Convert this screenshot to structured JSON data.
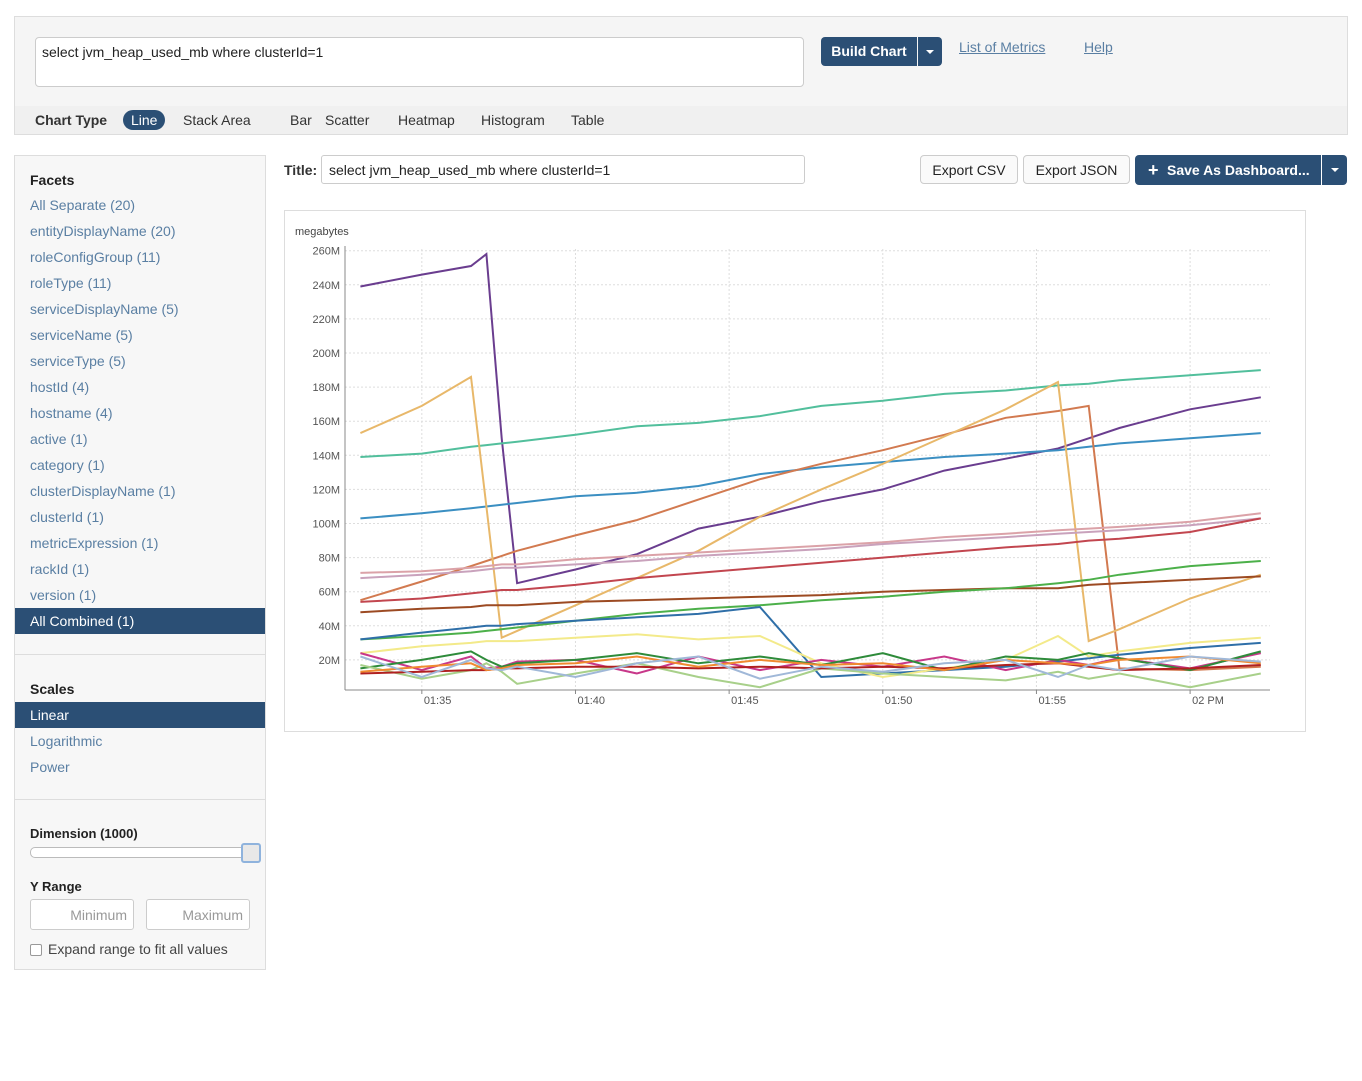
{
  "header": {
    "query": "select jvm_heap_used_mb where clusterId=1",
    "build_button": "Build Chart",
    "links": [
      "List of Metrics",
      "Help"
    ]
  },
  "chart_types": {
    "label": "Chart Type",
    "options": [
      "Line",
      "Stack Area",
      "Bar",
      "Scatter",
      "Heatmap",
      "Histogram",
      "Table"
    ],
    "selected": 0
  },
  "facets": {
    "title": "Facets",
    "items": [
      "All Separate (20)",
      "entityDisplayName (20)",
      "roleConfigGroup (11)",
      "roleType (11)",
      "serviceDisplayName (5)",
      "serviceName (5)",
      "serviceType (5)",
      "hostId (4)",
      "hostname (4)",
      "active (1)",
      "category (1)",
      "clusterDisplayName (1)",
      "clusterId (1)",
      "metricExpression (1)",
      "rackId (1)",
      "version (1)",
      "All Combined (1)"
    ],
    "selected": 16
  },
  "scales": {
    "title": "Scales",
    "items": [
      "Linear",
      "Logarithmic",
      "Power"
    ],
    "selected": 0
  },
  "dimension": "Dimension (1000)",
  "y_range": {
    "title": "Y Range",
    "min_placeholder": "Minimum",
    "max_placeholder": "Maximum",
    "expand_label": "Expand range to fit all values"
  },
  "title_row": {
    "label": "Title:",
    "value": "select jvm_heap_used_mb where clusterId=1"
  },
  "buttons": [
    "Export CSV",
    "Export JSON",
    "Save As Dashboard..."
  ],
  "chart_data": {
    "type": "line",
    "ylabel": "megabytes",
    "x": [
      33,
      35,
      36.6,
      37.1,
      37.6,
      38.1,
      40,
      42,
      44,
      46,
      48,
      50,
      52,
      54,
      55.7,
      56.7,
      57.7,
      60,
      62.3
    ],
    "xlim": [
      32.5,
      62.6
    ],
    "xticks": [
      {
        "value": 35,
        "label": "01:35"
      },
      {
        "value": 40,
        "label": "01:40"
      },
      {
        "value": 45,
        "label": "01:45"
      },
      {
        "value": 50,
        "label": "01:50"
      },
      {
        "value": 55,
        "label": "01:55"
      },
      {
        "value": 60,
        "label": "02 PM"
      }
    ],
    "ylim": [
      0,
      261
    ],
    "yticks": [
      {
        "value": 20,
        "label": "20M"
      },
      {
        "value": 40,
        "label": "40M"
      },
      {
        "value": 60,
        "label": "60M"
      },
      {
        "value": 80,
        "label": "80M"
      },
      {
        "value": 100,
        "label": "100M"
      },
      {
        "value": 120,
        "label": "120M"
      },
      {
        "value": 140,
        "label": "140M"
      },
      {
        "value": 160,
        "label": "160M"
      },
      {
        "value": 180,
        "label": "180M"
      },
      {
        "value": 200,
        "label": "200M"
      },
      {
        "value": 220,
        "label": "220M"
      },
      {
        "value": 240,
        "label": "240M"
      },
      {
        "value": 260,
        "label": "260M"
      }
    ],
    "grid": true,
    "series": [
      {
        "color": "#6a3d8f",
        "values": [
          239,
          246,
          251,
          258,
          150,
          65,
          73,
          82,
          97,
          104,
          113,
          120,
          131,
          138,
          144,
          150,
          156,
          167,
          174
        ]
      },
      {
        "color": "#52bf9c",
        "values": [
          139,
          141,
          145,
          146,
          147,
          148,
          152,
          157,
          159,
          163,
          169,
          172,
          176,
          178,
          181,
          182,
          184,
          187,
          190
        ]
      },
      {
        "color": "#3b8fc2",
        "values": [
          103,
          106,
          109,
          110,
          111,
          112,
          116,
          118,
          122,
          129,
          133,
          136,
          139,
          141,
          143,
          145,
          147,
          150,
          153
        ]
      },
      {
        "color": "#d27a50",
        "values": [
          55,
          66,
          75,
          78,
          81,
          84,
          93,
          102,
          114,
          126,
          135,
          143,
          152,
          162,
          166,
          169,
          15,
          14,
          16
        ]
      },
      {
        "color": "#e8b86a",
        "values": [
          153,
          169,
          186,
          110,
          33,
          37,
          52,
          68,
          84,
          104,
          120,
          135,
          151,
          167,
          183,
          31,
          38,
          56,
          70
        ]
      },
      {
        "color": "#dba2a8",
        "values": [
          71,
          72,
          74,
          75,
          76,
          76,
          79,
          81,
          83,
          85,
          87,
          89,
          92,
          94,
          96,
          97,
          98,
          101,
          106
        ]
      },
      {
        "color": "#c9a2bc",
        "values": [
          68,
          70,
          72,
          73,
          74,
          74,
          76,
          78,
          81,
          83,
          85,
          88,
          90,
          92,
          94,
          95,
          96,
          99,
          103
        ]
      },
      {
        "color": "#c2464f",
        "values": [
          54,
          56,
          59,
          60,
          61,
          61,
          64,
          68,
          71,
          74,
          77,
          80,
          83,
          86,
          88,
          90,
          91,
          95,
          103
        ]
      },
      {
        "color": "#9c4a22",
        "values": [
          48,
          50,
          51,
          52,
          52,
          52,
          54,
          55,
          56,
          57,
          58,
          60,
          61,
          62,
          62,
          64,
          65,
          67,
          69
        ]
      },
      {
        "color": "#4cb04a",
        "values": [
          32,
          34,
          36,
          37,
          38,
          39,
          43,
          47,
          50,
          52,
          55,
          57,
          60,
          62,
          65,
          67,
          70,
          75,
          78
        ]
      },
      {
        "color": "#2f6fa8",
        "values": [
          32,
          36,
          39,
          40,
          40,
          41,
          43,
          45,
          47,
          51,
          10,
          12,
          14,
          16,
          19,
          21,
          23,
          27,
          30
        ]
      },
      {
        "color": "#f3ea8a",
        "values": [
          24,
          28,
          30,
          31,
          31,
          31,
          33,
          35,
          32,
          34,
          18,
          10,
          15,
          20,
          34,
          22,
          25,
          30,
          33
        ]
      },
      {
        "color": "#c8388a",
        "values": [
          24,
          14,
          22,
          15,
          16,
          19,
          20,
          12,
          22,
          14,
          20,
          16,
          22,
          14,
          20,
          17,
          21,
          15,
          24
        ]
      },
      {
        "color": "#2e8b3a",
        "values": [
          15,
          20,
          25,
          20,
          16,
          18,
          20,
          24,
          18,
          22,
          17,
          24,
          14,
          22,
          20,
          24,
          21,
          14,
          25
        ]
      },
      {
        "color": "#a8d08a",
        "values": [
          17,
          9,
          14,
          18,
          13,
          6,
          12,
          18,
          10,
          4,
          15,
          12,
          10,
          8,
          13,
          9,
          12,
          4,
          12
        ]
      },
      {
        "color": "#b02020",
        "values": [
          12,
          13,
          14,
          14,
          15,
          15,
          16,
          16,
          15,
          16,
          15,
          16,
          15,
          17,
          18,
          16,
          14,
          15,
          17
        ]
      },
      {
        "color": "#f08a30",
        "values": [
          13,
          16,
          18,
          14,
          15,
          17,
          18,
          22,
          16,
          20,
          17,
          18,
          14,
          20,
          18,
          17,
          20,
          22,
          18
        ]
      },
      {
        "color": "#a0b8d8",
        "values": [
          22,
          10,
          20,
          15,
          14,
          16,
          10,
          18,
          22,
          9,
          16,
          13,
          18,
          20,
          10,
          17,
          14,
          22,
          19
        ]
      }
    ]
  }
}
